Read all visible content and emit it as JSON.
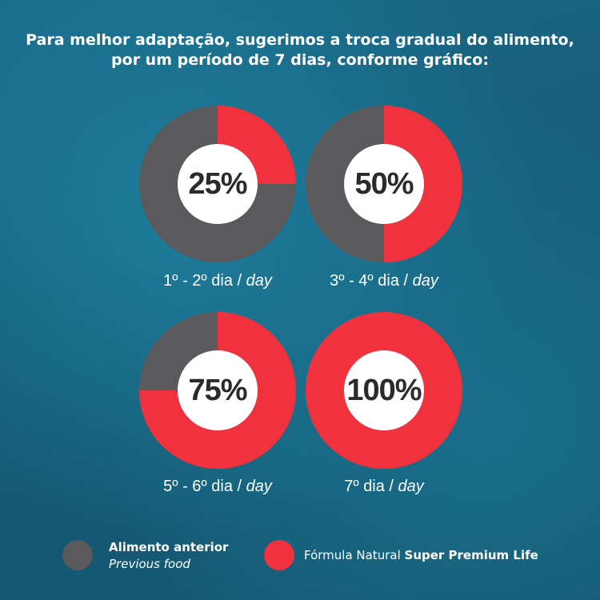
{
  "title": {
    "line1": "Para melhor adaptação, sugerimos a troca gradual do alimento,",
    "line2": "por um período de 7 dias, conforme gráfico:"
  },
  "colors": {
    "previous": "#5a5a5c",
    "new": "#f0323f",
    "center": "#ffffff"
  },
  "chart_data": {
    "type": "pie",
    "series": [
      {
        "name": "Alimento anterior",
        "values": [
          75,
          50,
          25,
          0
        ]
      },
      {
        "name": "Fórmula Natural Super Premium Life",
        "values": [
          25,
          50,
          75,
          100
        ]
      }
    ],
    "categories": [
      "1º - 2º dia / day",
      "3º - 4º dia / day",
      "5º - 6º dia / day",
      "7º dia / day"
    ],
    "charts": [
      {
        "label": "25%",
        "new_percent": 25,
        "caption_main": "1º - 2º dia / ",
        "caption_unit": "day"
      },
      {
        "label": "50%",
        "new_percent": 50,
        "caption_main": "3º - 4º dia / ",
        "caption_unit": "day"
      },
      {
        "label": "75%",
        "new_percent": 75,
        "caption_main": "5º - 6º dia / ",
        "caption_unit": "day"
      },
      {
        "label": "100%",
        "new_percent": 100,
        "caption_main": "7º dia / ",
        "caption_unit": "day"
      }
    ]
  },
  "legend": {
    "previous": {
      "title": "Alimento anterior",
      "subtitle": "Previous food"
    },
    "new": {
      "prefix": "Fórmula Natural ",
      "bold": "Super Premium Life"
    }
  }
}
